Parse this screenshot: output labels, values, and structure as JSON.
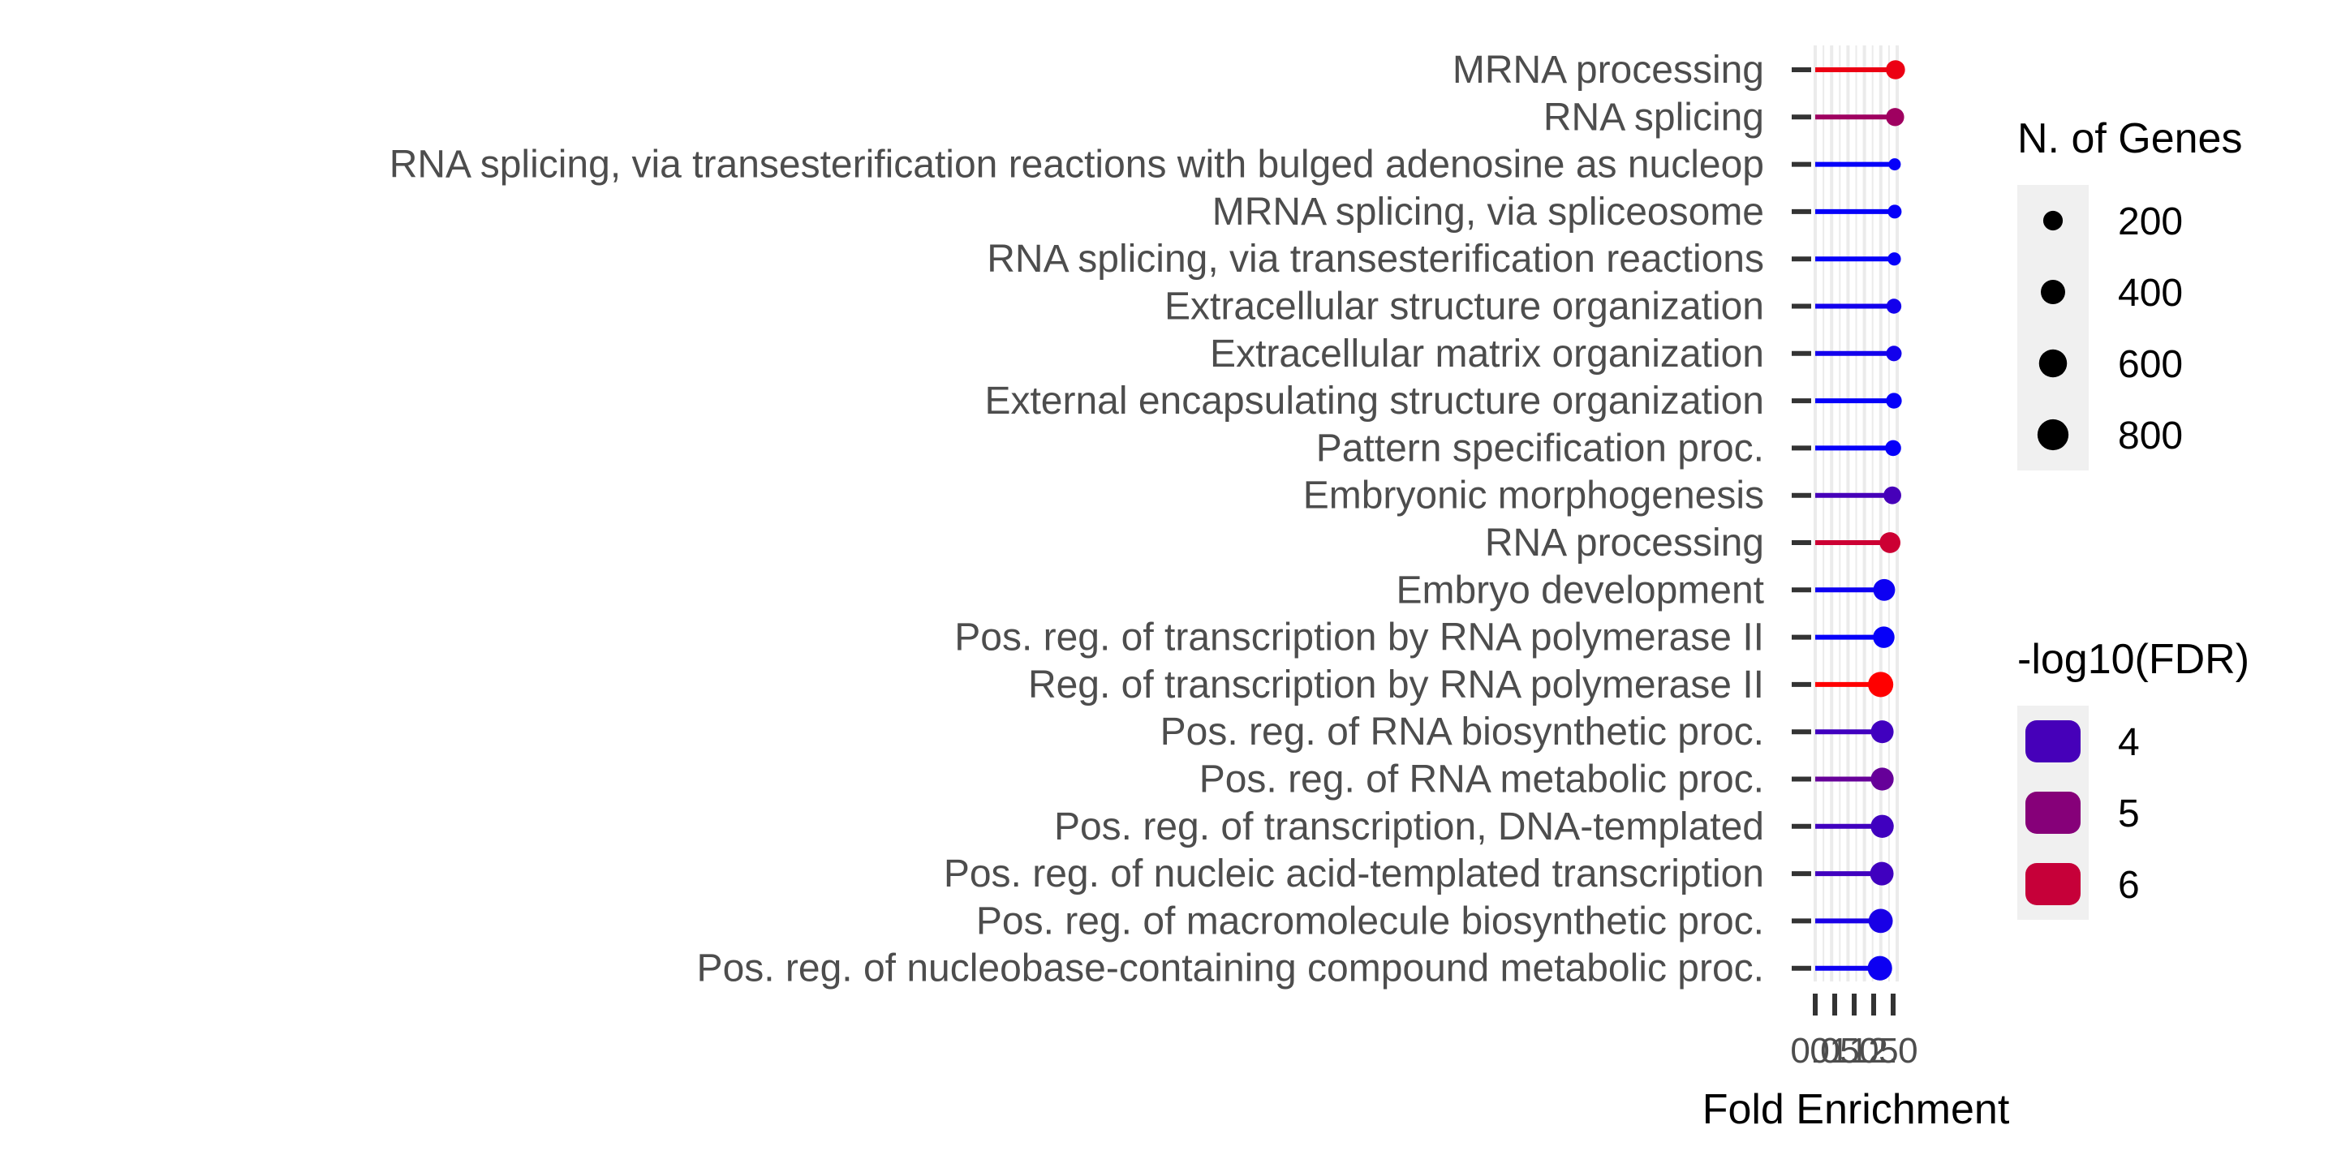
{
  "chart_data": {
    "type": "lollipop",
    "title": "",
    "xlabel": "Fold Enrichment",
    "ylabel": "",
    "x_tick_labels": [
      "0.0",
      "0.5",
      "1.0",
      "1.5",
      "2.0"
    ],
    "xlim": [
      0,
      2.1
    ],
    "grid": true,
    "categories": [
      "MRNA processing",
      "RNA splicing",
      "RNA splicing, via transesterification reactions with bulged adenosine as nucleop",
      "MRNA splicing, via spliceosome",
      "RNA splicing, via transesterification reactions",
      "Extracellular structure organization",
      "Extracellular matrix organization",
      "External encapsulating structure organization",
      "Pattern specification proc.",
      "Embryonic morphogenesis",
      "RNA processing",
      "Embryo development",
      "Pos. reg. of transcription by RNA polymerase II",
      "Reg. of transcription by RNA polymerase II",
      "Pos. reg. of RNA biosynthetic proc.",
      "Pos. reg. of RNA metabolic proc.",
      "Pos. reg. of transcription, DNA-templated",
      "Pos. reg. of nucleic acid-templated transcription",
      "Pos. reg. of macromolecule biosynthetic proc.",
      "Pos. reg. of nucleobase-containing compound metabolic proc."
    ],
    "fold_enrichment": [
      2.06,
      2.05,
      2.04,
      2.04,
      2.03,
      2.02,
      2.02,
      2.02,
      2.0,
      1.98,
      1.92,
      1.77,
      1.76,
      1.68,
      1.72,
      1.72,
      1.72,
      1.71,
      1.68,
      1.66
    ],
    "n_genes": [
      380,
      330,
      100,
      150,
      130,
      190,
      210,
      220,
      230,
      310,
      480,
      540,
      520,
      780,
      600,
      610,
      620,
      650,
      700,
      720
    ],
    "neg_log10_fdr": [
      6.7,
      5.5,
      3.1,
      3.1,
      3.1,
      3.3,
      3.3,
      3.1,
      3.1,
      4.1,
      6.2,
      3.2,
      3.1,
      7.0,
      4.0,
      4.6,
      4.0,
      4.0,
      3.4,
      3.2
    ],
    "size_legend": {
      "title": "N. of Genes",
      "labels": [
        "200",
        "400",
        "600",
        "800"
      ],
      "values": [
        200,
        400,
        600,
        800
      ]
    },
    "color_legend": {
      "title": "-log10(FDR)",
      "labels": [
        "4",
        "5",
        "6"
      ],
      "values": [
        4,
        5,
        6
      ]
    },
    "color_scale": {
      "low": "#0000FF",
      "high": "#FF0000",
      "range": [
        3,
        7
      ]
    },
    "legend_placement": "right"
  }
}
